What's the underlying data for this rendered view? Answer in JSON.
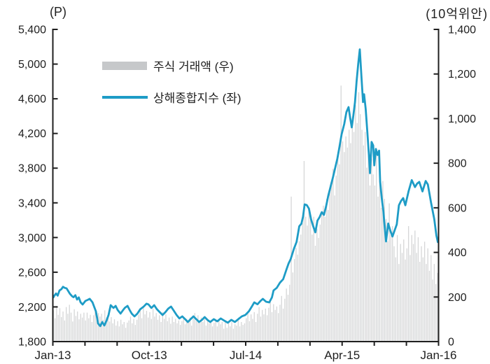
{
  "chart": {
    "left_axis_unit": "(P)",
    "right_axis_unit": "(10억위안)",
    "legend": {
      "volume": {
        "label": "주식 거래액 (우)"
      },
      "index": {
        "label": "상해종합지수 (좌)"
      }
    }
  },
  "chart_data": {
    "type": "combo-bar-line",
    "title": "",
    "colors": {
      "bar": "#d5d6d7",
      "bar_legend": "#c6c8ca",
      "line": "#1e9cc6",
      "axis": "#1f1f1f",
      "text": "#1f1f1f"
    },
    "x_axis": {
      "total_months": 36,
      "minor_tick_every_months": 3,
      "labels": [
        {
          "text": "Jan-13",
          "month": 0
        },
        {
          "text": "Oct-13",
          "month": 9
        },
        {
          "text": "Jul-14",
          "month": 18
        },
        {
          "text": "Apr-15",
          "month": 27
        },
        {
          "text": "Jan-16",
          "month": 36
        }
      ]
    },
    "left_axis": {
      "unit": "(P)",
      "min": 1800,
      "max": 5400,
      "step": 400,
      "ticks": [
        {
          "value": 1800,
          "label": "1,800"
        },
        {
          "value": 2200,
          "label": "2,200"
        },
        {
          "value": 2600,
          "label": "2,600"
        },
        {
          "value": 3000,
          "label": "3,000"
        },
        {
          "value": 3400,
          "label": "3,400"
        },
        {
          "value": 3800,
          "label": "3,800"
        },
        {
          "value": 4200,
          "label": "4,200"
        },
        {
          "value": 4600,
          "label": "4,600"
        },
        {
          "value": 5000,
          "label": "5,000"
        },
        {
          "value": 5400,
          "label": "5,400"
        }
      ]
    },
    "right_axis": {
      "unit": "(10억위안)",
      "min": 0,
      "max": 1400,
      "step": 200,
      "ticks": [
        {
          "value": 0,
          "label": "0"
        },
        {
          "value": 200,
          "label": "200"
        },
        {
          "value": 400,
          "label": "400"
        },
        {
          "value": 600,
          "label": "600"
        },
        {
          "value": 800,
          "label": "800"
        },
        {
          "value": 1000,
          "label": "1,000"
        },
        {
          "value": 1200,
          "label": "1,200"
        },
        {
          "value": 1400,
          "label": "1,400"
        }
      ]
    },
    "series": [
      {
        "name": "주식 거래액 (우)",
        "type": "bar",
        "axis": "right",
        "start_month": 0.05,
        "month_step": 0.15,
        "values": [
          140,
          105,
          160,
          120,
          150,
          110,
          135,
          95,
          155,
          125,
          165,
          130,
          90,
          145,
          115,
          135,
          100,
          125,
          108,
          130,
          95,
          130,
          105,
          120,
          88,
          118,
          135,
          100,
          128,
          112,
          125,
          98,
          140,
          108,
          120,
          90,
          110,
          82,
          100,
          72,
          92,
          68,
          98,
          78,
          88,
          62,
          85,
          95,
          112,
          82,
          102,
          75,
          98,
          120,
          145,
          105,
          158,
          122,
          138,
          108,
          132,
          102,
          148,
          112,
          128,
          98,
          118,
          88,
          132,
          102,
          122,
          92,
          108,
          80,
          112,
          88,
          102,
          82,
          95,
          75,
          92,
          112,
          78,
          102,
          88,
          108,
          72,
          105,
          128,
          92,
          118,
          84,
          108,
          88,
          108,
          72,
          98,
          82,
          92,
          68,
          84,
          102,
          68,
          92,
          78,
          88,
          58,
          92,
          62,
          82,
          68,
          88,
          58,
          78,
          72,
          95,
          68,
          88,
          75,
          82,
          105,
          135,
          92,
          122,
          102,
          132,
          88,
          125,
          155,
          112,
          142,
          122,
          148,
          118,
          152,
          182,
          132,
          168,
          142,
          158,
          128,
          165,
          205,
          148,
          192,
          238,
          210,
          255,
          650,
          310,
          370,
          420,
          390,
          450,
          480,
          530,
          810,
          560,
          520,
          585,
          545,
          480,
          560,
          430,
          505,
          465,
          525,
          570,
          610,
          560,
          640,
          590,
          670,
          705,
          775,
          655,
          745,
          820,
          795,
          1148,
          898,
          850,
          920,
          870,
          950,
          890,
          1000,
          940,
          1060,
          980,
          1118,
          1020,
          950,
          880,
          940,
          780,
          870,
          700,
          820,
          750,
          700,
          850,
          650,
          780,
          600,
          720,
          640,
          550,
          450,
          620,
          478,
          518,
          428,
          378,
          478,
          348,
          438,
          398,
          458,
          368,
          418,
          518,
          388,
          478,
          438,
          498,
          398,
          468,
          358,
          428,
          378,
          448,
          348,
          418,
          318,
          388,
          278,
          348,
          258,
          308
        ]
      },
      {
        "name": "상해종합지수 (좌)",
        "type": "line",
        "axis": "left",
        "points": [
          [
            0.05,
            2310
          ],
          [
            0.16,
            2333
          ],
          [
            0.3,
            2355
          ],
          [
            0.45,
            2330
          ],
          [
            0.62,
            2390
          ],
          [
            0.8,
            2405
          ],
          [
            0.95,
            2432
          ],
          [
            1.1,
            2420
          ],
          [
            1.28,
            2414
          ],
          [
            1.45,
            2380
          ],
          [
            1.6,
            2350
          ],
          [
            1.78,
            2325
          ],
          [
            1.93,
            2312
          ],
          [
            2.1,
            2335
          ],
          [
            2.26,
            2285
          ],
          [
            2.42,
            2310
          ],
          [
            2.59,
            2253
          ],
          [
            2.78,
            2228
          ],
          [
            3.04,
            2269
          ],
          [
            3.24,
            2280
          ],
          [
            3.44,
            2293
          ],
          [
            3.7,
            2253
          ],
          [
            4.02,
            2148
          ],
          [
            4.22,
            2010
          ],
          [
            4.42,
            1978
          ],
          [
            4.61,
            2026
          ],
          [
            4.81,
            1986
          ],
          [
            5.01,
            2042
          ],
          [
            5.2,
            2107
          ],
          [
            5.4,
            2220
          ],
          [
            5.66,
            2188
          ],
          [
            5.86,
            2212
          ],
          [
            6.05,
            2164
          ],
          [
            6.32,
            2123
          ],
          [
            6.51,
            2156
          ],
          [
            6.71,
            2188
          ],
          [
            6.97,
            2212
          ],
          [
            7.17,
            2164
          ],
          [
            7.36,
            2123
          ],
          [
            7.62,
            2091
          ],
          [
            7.89,
            2123
          ],
          [
            8.15,
            2172
          ],
          [
            8.48,
            2204
          ],
          [
            8.74,
            2237
          ],
          [
            8.93,
            2228
          ],
          [
            9.2,
            2188
          ],
          [
            9.46,
            2220
          ],
          [
            9.72,
            2172
          ],
          [
            9.98,
            2139
          ],
          [
            10.24,
            2107
          ],
          [
            10.5,
            2139
          ],
          [
            10.77,
            2180
          ],
          [
            11.03,
            2204
          ],
          [
            11.29,
            2156
          ],
          [
            11.55,
            2107
          ],
          [
            11.81,
            2067
          ],
          [
            12.08,
            2091
          ],
          [
            12.34,
            2059
          ],
          [
            12.6,
            2026
          ],
          [
            12.86,
            2059
          ],
          [
            13.12,
            2091
          ],
          [
            13.38,
            2059
          ],
          [
            13.65,
            2026
          ],
          [
            13.91,
            2050
          ],
          [
            14.17,
            2083
          ],
          [
            14.43,
            2050
          ],
          [
            14.69,
            2026
          ],
          [
            15.02,
            2059
          ],
          [
            15.35,
            2034
          ],
          [
            15.67,
            2067
          ],
          [
            16.0,
            2042
          ],
          [
            16.33,
            2018
          ],
          [
            16.66,
            2051
          ],
          [
            16.99,
            2026
          ],
          [
            17.31,
            2059
          ],
          [
            17.64,
            2091
          ],
          [
            17.97,
            2107
          ],
          [
            18.3,
            2150
          ],
          [
            18.6,
            2210
          ],
          [
            18.8,
            2252
          ],
          [
            19.1,
            2230
          ],
          [
            19.35,
            2265
          ],
          [
            19.6,
            2293
          ],
          [
            19.9,
            2260
          ],
          [
            20.2,
            2252
          ],
          [
            20.45,
            2310
          ],
          [
            20.6,
            2390
          ],
          [
            20.9,
            2420
          ],
          [
            21.2,
            2480
          ],
          [
            21.5,
            2520
          ],
          [
            21.8,
            2630
          ],
          [
            22.0,
            2700
          ],
          [
            22.2,
            2752
          ],
          [
            22.5,
            2870
          ],
          [
            22.75,
            2950
          ],
          [
            23.0,
            3130
          ],
          [
            23.2,
            3160
          ],
          [
            23.35,
            3240
          ],
          [
            23.5,
            3382
          ],
          [
            23.7,
            3374
          ],
          [
            23.9,
            3334
          ],
          [
            24.1,
            3210
          ],
          [
            24.3,
            3130
          ],
          [
            24.5,
            3060
          ],
          [
            24.7,
            3196
          ],
          [
            24.9,
            3236
          ],
          [
            25.1,
            3293
          ],
          [
            25.3,
            3261
          ],
          [
            25.5,
            3358
          ],
          [
            25.7,
            3479
          ],
          [
            25.95,
            3600
          ],
          [
            26.15,
            3697
          ],
          [
            26.35,
            3802
          ],
          [
            26.55,
            3907
          ],
          [
            26.75,
            4044
          ],
          [
            26.95,
            4189
          ],
          [
            27.2,
            4310
          ],
          [
            27.4,
            4447
          ],
          [
            27.6,
            4504
          ],
          [
            27.75,
            4380
          ],
          [
            27.9,
            4270
          ],
          [
            28.05,
            4410
          ],
          [
            28.2,
            4560
          ],
          [
            28.35,
            4800
          ],
          [
            28.5,
            5000
          ],
          [
            28.65,
            5170
          ],
          [
            28.8,
            4862
          ],
          [
            28.95,
            4562
          ],
          [
            29.05,
            4652
          ],
          [
            29.2,
            4482
          ],
          [
            29.35,
            4222
          ],
          [
            29.5,
            3952
          ],
          [
            29.6,
            3742
          ],
          [
            29.75,
            4102
          ],
          [
            29.9,
            4062
          ],
          [
            30.0,
            3832
          ],
          [
            30.15,
            4022
          ],
          [
            30.3,
            3952
          ],
          [
            30.45,
            4002
          ],
          [
            30.55,
            3642
          ],
          [
            30.7,
            3452
          ],
          [
            30.85,
            3302
          ],
          [
            31.0,
            3082
          ],
          [
            31.1,
            2955
          ],
          [
            31.3,
            3162
          ],
          [
            31.5,
            3078
          ],
          [
            31.7,
            3012
          ],
          [
            31.9,
            3082
          ],
          [
            32.1,
            3152
          ],
          [
            32.3,
            3372
          ],
          [
            32.5,
            3422
          ],
          [
            32.7,
            3455
          ],
          [
            32.9,
            3372
          ],
          [
            33.2,
            3532
          ],
          [
            33.5,
            3662
          ],
          [
            33.8,
            3582
          ],
          [
            34.0,
            3622
          ],
          [
            34.2,
            3642
          ],
          [
            34.5,
            3532
          ],
          [
            34.8,
            3652
          ],
          [
            35.0,
            3612
          ],
          [
            35.3,
            3402
          ],
          [
            35.6,
            3212
          ],
          [
            35.8,
            3022
          ],
          [
            35.93,
            2948
          ]
        ]
      }
    ]
  }
}
